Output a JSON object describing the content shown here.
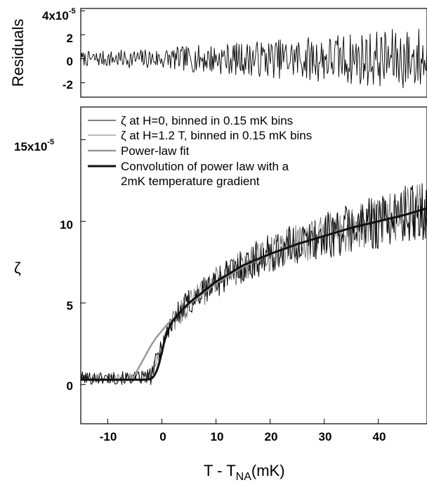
{
  "chart_data": [
    {
      "type": "line",
      "panel": "residuals",
      "title": "",
      "xlabel": "",
      "ylabel": "Residuals",
      "xlim": [
        -15,
        49
      ],
      "ylim": [
        -3.2,
        4.2
      ],
      "y_multiplier_label": "x10",
      "y_exponent": "-5",
      "yticks": [
        {
          "value": 4,
          "label": "4"
        },
        {
          "value": 2,
          "label": "2"
        },
        {
          "value": 0,
          "label": "0"
        },
        {
          "value": -2,
          "label": "-2"
        }
      ],
      "series": [
        {
          "color": "#000000",
          "noise": true,
          "x": [
            -15,
            -10,
            -5,
            0,
            5,
            10,
            15,
            20,
            25,
            30,
            35,
            40,
            45,
            49
          ],
          "amplitude": [
            0.6,
            0.7,
            0.8,
            0.9,
            1.1,
            1.3,
            1.4,
            1.6,
            1.8,
            2.0,
            2.2,
            2.4,
            2.6,
            2.8
          ]
        }
      ]
    },
    {
      "type": "line",
      "panel": "main",
      "title": "",
      "xlabel": "T - T",
      "xlabel_subscript": "NA",
      "xlabel_unit": "(mK)",
      "ylabel": "ζ",
      "xlim": [
        -15,
        49
      ],
      "ylim": [
        -2.4,
        17
      ],
      "y_multiplier_label": "x10",
      "y_exponent": "-5",
      "xticks": [
        {
          "value": -10,
          "label": "-10"
        },
        {
          "value": 0,
          "label": "0"
        },
        {
          "value": 10,
          "label": "10"
        },
        {
          "value": 20,
          "label": "20"
        },
        {
          "value": 30,
          "label": "30"
        },
        {
          "value": 40,
          "label": "40"
        }
      ],
      "yticks": [
        {
          "value": 15,
          "label": "15"
        },
        {
          "value": 10,
          "label": "10"
        },
        {
          "value": 5,
          "label": "5"
        },
        {
          "value": 0,
          "label": "0"
        }
      ],
      "legend": [
        {
          "label": "ζ at  H=0, binned in 0.15 mK bins",
          "color": "#000000",
          "width": 1
        },
        {
          "label": "ζ at H=1.2 T, binned in 0.15 mK bins",
          "color": "#777777",
          "width": 1
        },
        {
          "label": "Power-law fit",
          "color": "#999999",
          "width": 2.5
        },
        {
          "label": "Convolution of power law with a",
          "label_line2": "2mK temperature gradient",
          "color": "#111111",
          "width": 3
        }
      ],
      "legend_position": "top-left",
      "series": [
        {
          "name": "ζ at  H=0, binned in 0.15 mK bins",
          "color": "#000000",
          "noise": true,
          "x": [
            -15,
            -10,
            -5,
            -2,
            0,
            2,
            5,
            10,
            15,
            20,
            25,
            30,
            35,
            40,
            45,
            49
          ],
          "y": [
            0.4,
            0.4,
            0.4,
            0.5,
            2.5,
            4.0,
            5.0,
            6.3,
            7.3,
            8.0,
            8.6,
            9.1,
            9.6,
            10.0,
            10.4,
            10.8
          ],
          "amplitude": [
            0.4,
            0.4,
            0.4,
            0.5,
            0.7,
            0.8,
            0.9,
            1.0,
            1.1,
            1.2,
            1.3,
            1.4,
            1.6,
            1.7,
            1.8,
            1.9
          ]
        },
        {
          "name": "ζ at H=1.2 T, binned in 0.15 mK bins",
          "color": "#777777",
          "noise": true,
          "x": [
            -15,
            -10,
            -5,
            -2,
            0,
            2,
            5,
            10,
            15,
            20,
            25,
            30,
            35,
            40,
            45,
            49
          ],
          "y": [
            0.4,
            0.4,
            0.4,
            0.5,
            2.4,
            3.9,
            5.0,
            6.3,
            7.3,
            8.0,
            8.6,
            9.1,
            9.6,
            10.0,
            10.4,
            10.8
          ],
          "amplitude": [
            0.3,
            0.3,
            0.3,
            0.4,
            0.6,
            0.7,
            0.8,
            0.9,
            1.0,
            1.1,
            1.2,
            1.3,
            1.4,
            1.5,
            1.6,
            1.7
          ]
        },
        {
          "name": "Power-law fit",
          "color": "#999999",
          "noise": false,
          "x": [
            -15,
            -6,
            -5.4,
            -5,
            -4,
            -3,
            -2,
            -1,
            0,
            1,
            2,
            5,
            10,
            15,
            20,
            25,
            30,
            35,
            40,
            45,
            49
          ],
          "y": [
            0.3,
            0.3,
            0.4,
            0.6,
            1.2,
            1.8,
            2.4,
            2.9,
            3.3,
            3.7,
            4.0,
            4.9,
            6.2,
            7.2,
            8.0,
            8.6,
            9.1,
            9.6,
            10.0,
            10.4,
            10.8
          ]
        },
        {
          "name": "Convolution of power law with a 2mK temperature gradient",
          "color": "#111111",
          "noise": false,
          "x": [
            -15,
            -3,
            -2,
            -1.5,
            -1,
            -0.5,
            0,
            0.5,
            1,
            1.5,
            2,
            3,
            5,
            10,
            15,
            20,
            25,
            30,
            35,
            40,
            45,
            49
          ],
          "y": [
            0.3,
            0.3,
            0.35,
            0.5,
            0.8,
            1.3,
            2.0,
            2.7,
            3.2,
            3.6,
            3.9,
            4.3,
            5.0,
            6.3,
            7.3,
            8.0,
            8.6,
            9.1,
            9.6,
            10.0,
            10.4,
            10.8
          ]
        }
      ]
    }
  ]
}
